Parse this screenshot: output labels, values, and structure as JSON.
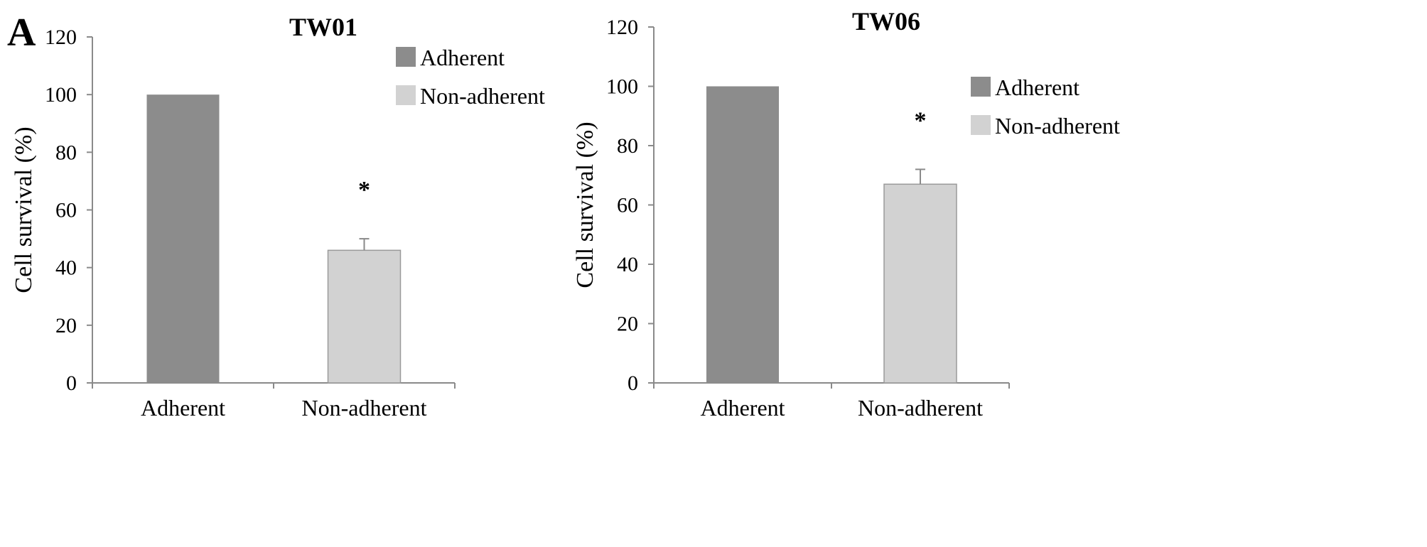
{
  "panel_label": "A",
  "chart_data": [
    {
      "type": "bar",
      "title": "TW01",
      "xlabel": "",
      "ylabel": "Cell  survival (%)",
      "ylim": [
        0,
        120
      ],
      "yticks": [
        0,
        20,
        40,
        60,
        80,
        100,
        120
      ],
      "categories": [
        "Adherent",
        "Non-adherent"
      ],
      "values": [
        100,
        46
      ],
      "errors": [
        0,
        4
      ],
      "colors": [
        "#8c8c8c",
        "#d2d2d2"
      ],
      "annotations": [
        {
          "category": "Non-adherent",
          "text": "*"
        }
      ],
      "legend": {
        "position": "top-right",
        "entries": [
          {
            "label": "Adherent",
            "color": "#8c8c8c"
          },
          {
            "label": "Non-adherent",
            "color": "#d2d2d2"
          }
        ]
      }
    },
    {
      "type": "bar",
      "title": "TW06",
      "xlabel": "",
      "ylabel": "Cell  survival (%)",
      "ylim": [
        0,
        120
      ],
      "yticks": [
        0,
        20,
        40,
        60,
        80,
        100,
        120
      ],
      "categories": [
        "Adherent",
        "Non-adherent"
      ],
      "values": [
        100,
        67
      ],
      "errors": [
        0,
        5
      ],
      "colors": [
        "#8c8c8c",
        "#d2d2d2"
      ],
      "annotations": [
        {
          "category": "Non-adherent",
          "text": "*"
        }
      ],
      "legend": {
        "position": "top-right",
        "entries": [
          {
            "label": "Adherent",
            "color": "#8c8c8c"
          },
          {
            "label": "Non-adherent",
            "color": "#d2d2d2"
          }
        ]
      }
    }
  ]
}
